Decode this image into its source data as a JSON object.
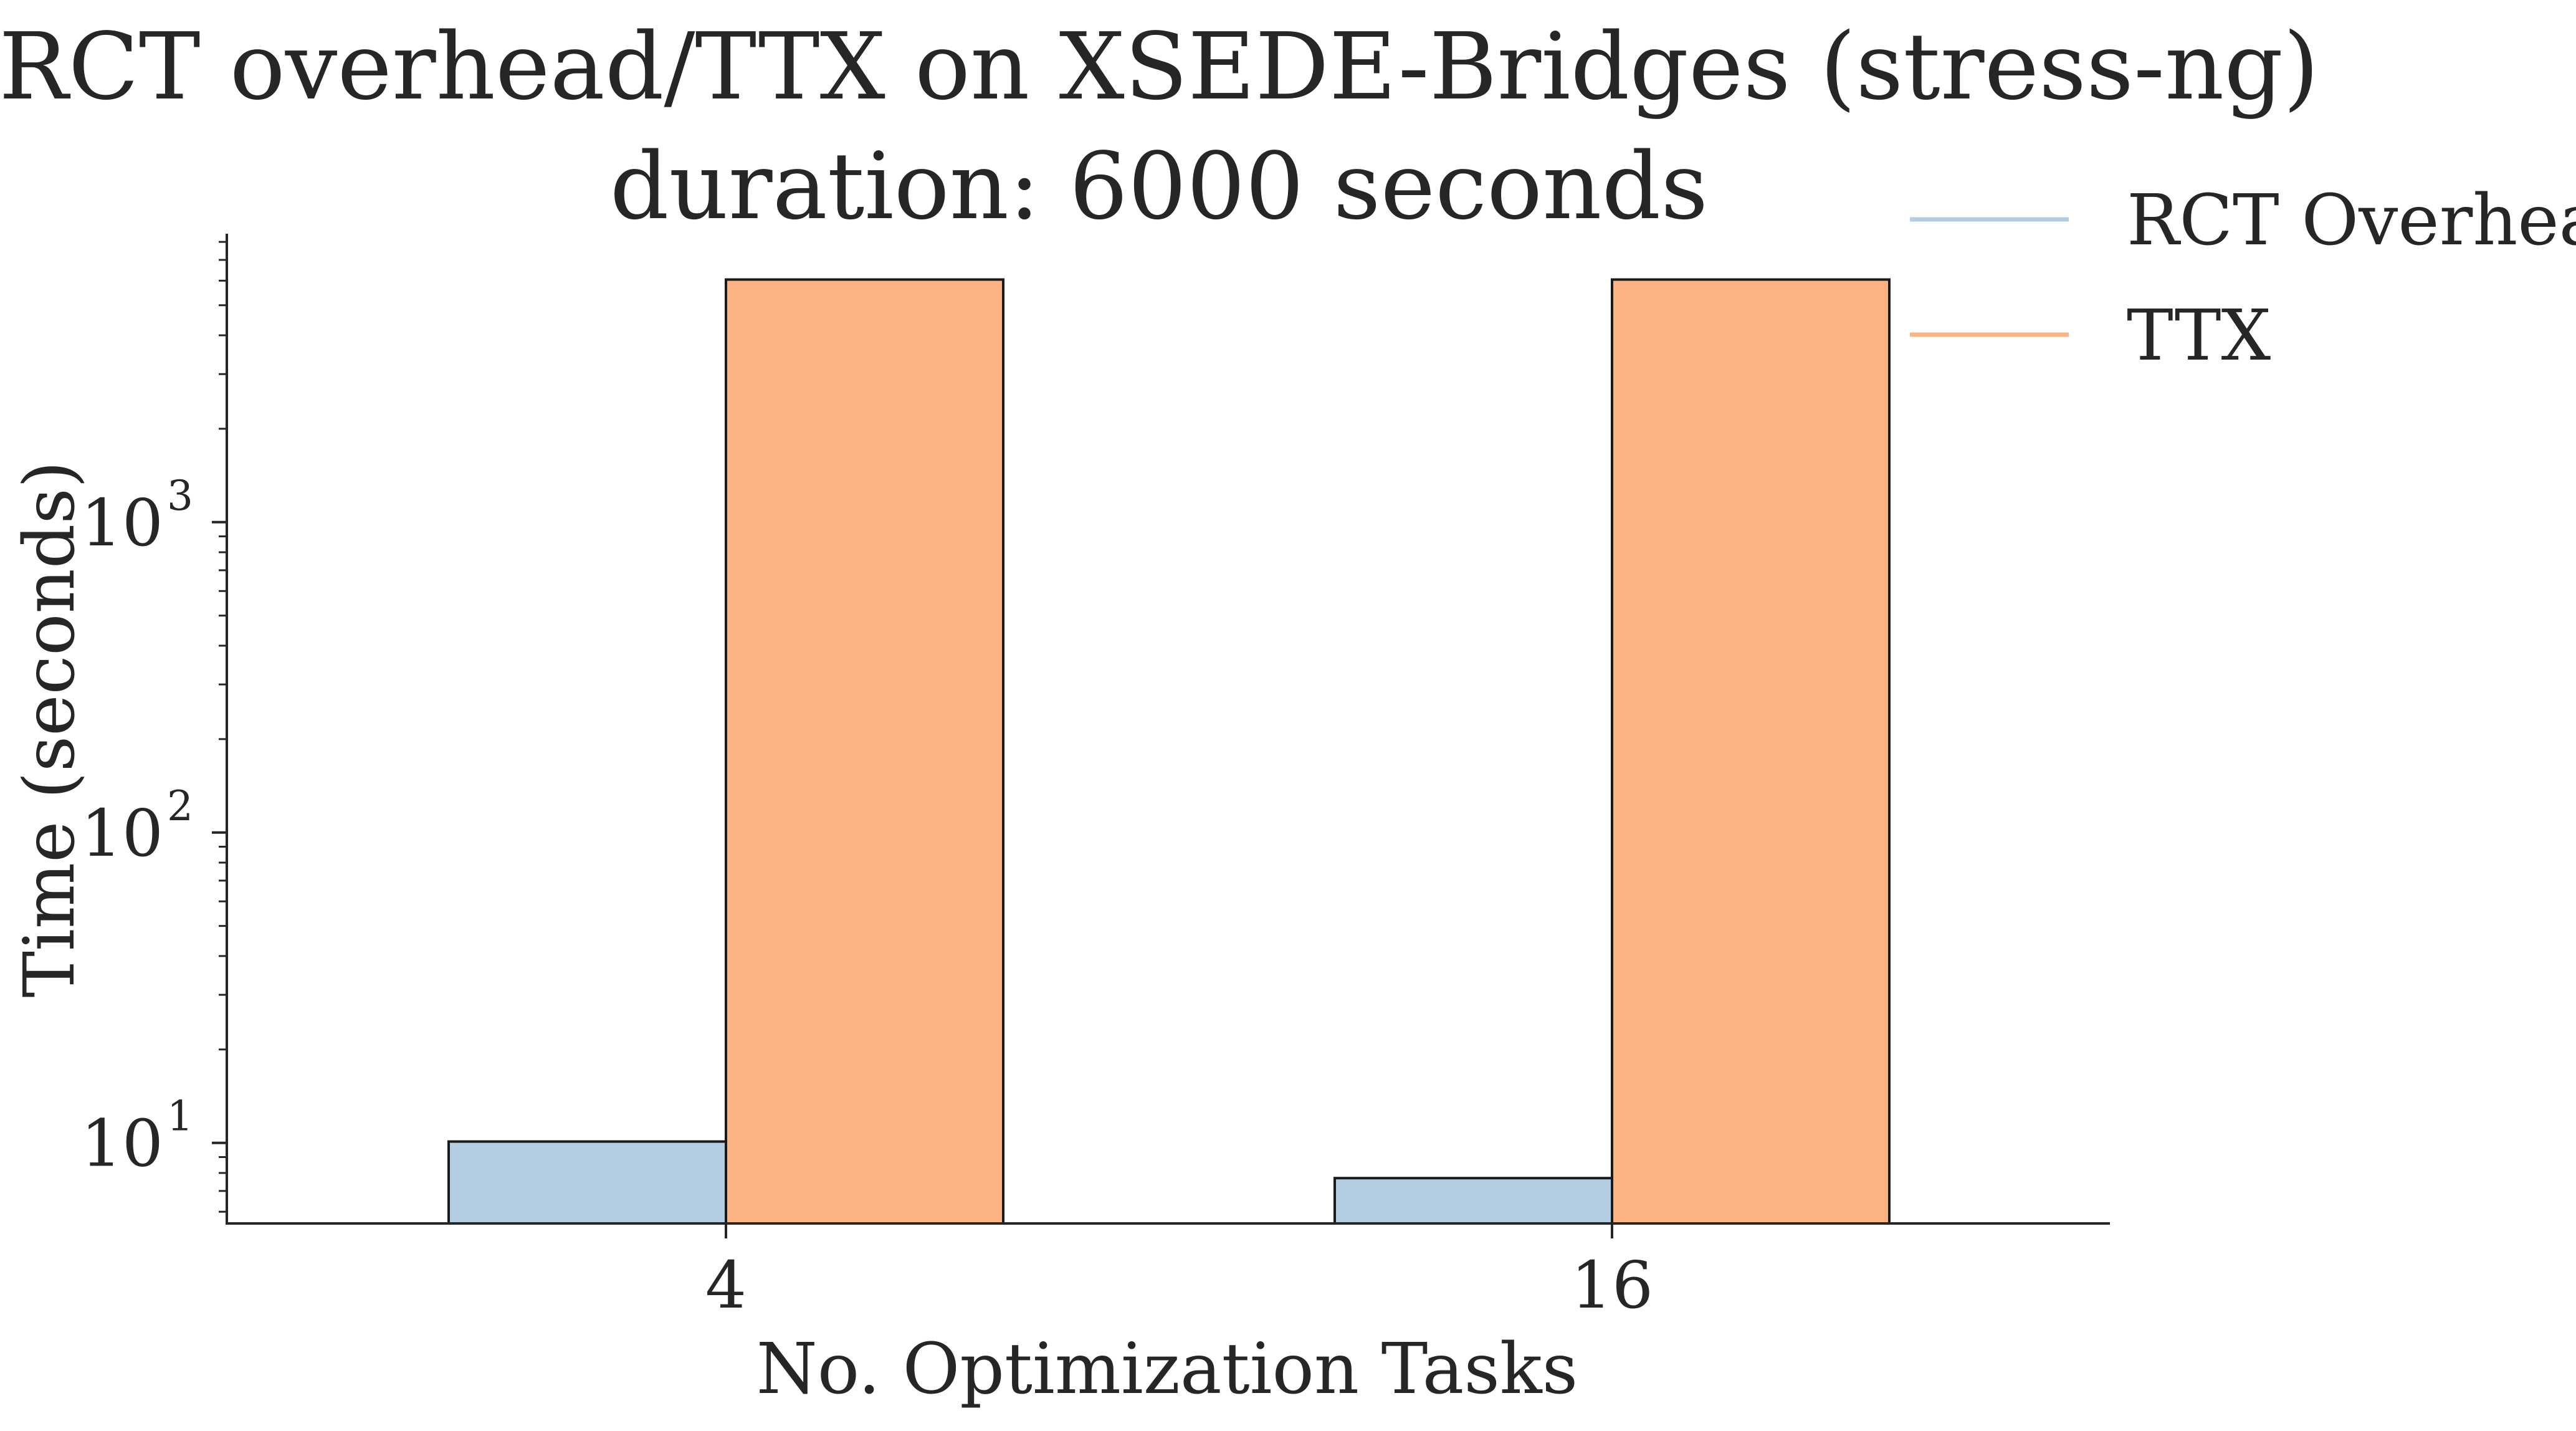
{
  "chart_data": {
    "type": "bar",
    "title": "RCT overhead/TTX on XSEDE-Bridges (stress-ng)",
    "subtitle": "duration: 6000 seconds",
    "xlabel": "No. Optimization Tasks",
    "ylabel": "Time (seconds)",
    "yscale": "log",
    "ylim": [
      5.5,
      8500
    ],
    "categories": [
      "4",
      "16"
    ],
    "yticks": [
      {
        "base": "10",
        "exp": "1",
        "value": 10
      },
      {
        "base": "10",
        "exp": "2",
        "value": 100
      },
      {
        "base": "10",
        "exp": "3",
        "value": 1000
      }
    ],
    "series": [
      {
        "name": "RCT Overhead",
        "values": [
          10.1,
          7.7
        ],
        "color": "#b3cde3"
      },
      {
        "name": "TTX",
        "values": [
          6050,
          6050
        ],
        "color": "#fdb282"
      }
    ],
    "legend_position": "top-right, outside plot",
    "grid": false
  }
}
